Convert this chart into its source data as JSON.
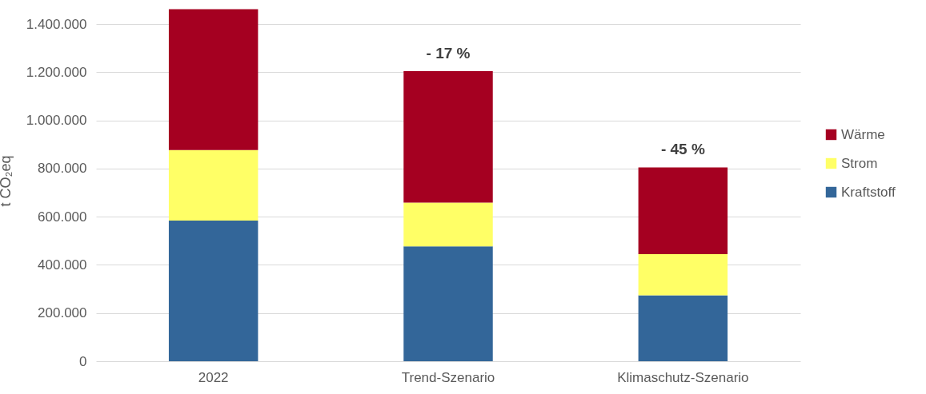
{
  "chart_data": {
    "type": "bar",
    "stacked": true,
    "ylabel": "t CO₂eq",
    "categories": [
      "2022",
      "Trend-Szenario",
      "Klimaschutz-Szenario"
    ],
    "series": [
      {
        "name": "Kraftstoff",
        "color": "#336699",
        "values": [
          584000,
          477000,
          274000
        ]
      },
      {
        "name": "Strom",
        "color": "#ffff66",
        "values": [
          293000,
          182000,
          171000
        ]
      },
      {
        "name": "Wärme",
        "color": "#a50021",
        "values": [
          585000,
          546000,
          360000
        ]
      }
    ],
    "ylim": [
      0,
      1500000
    ],
    "yticks": [
      0,
      {
        "value": 200000,
        "label": "200.000"
      },
      {
        "value": 400000,
        "label": "400.000"
      },
      {
        "value": 600000,
        "label": "600.000"
      },
      {
        "value": 800000,
        "label": "800.000"
      },
      {
        "value": 1000000,
        "label": "1.000.000"
      },
      {
        "value": 1200000,
        "label": "1.200.000"
      },
      {
        "value": 1400000,
        "label": "1.400.000"
      }
    ],
    "grid": "y",
    "legend": "right",
    "annotations": [
      {
        "text": "- 17 %",
        "x": "Trend-Szenario",
        "y": 1205000
      },
      {
        "text": "- 45 %",
        "x": "Klimaschutz-Szenario",
        "y": 805000
      }
    ]
  }
}
